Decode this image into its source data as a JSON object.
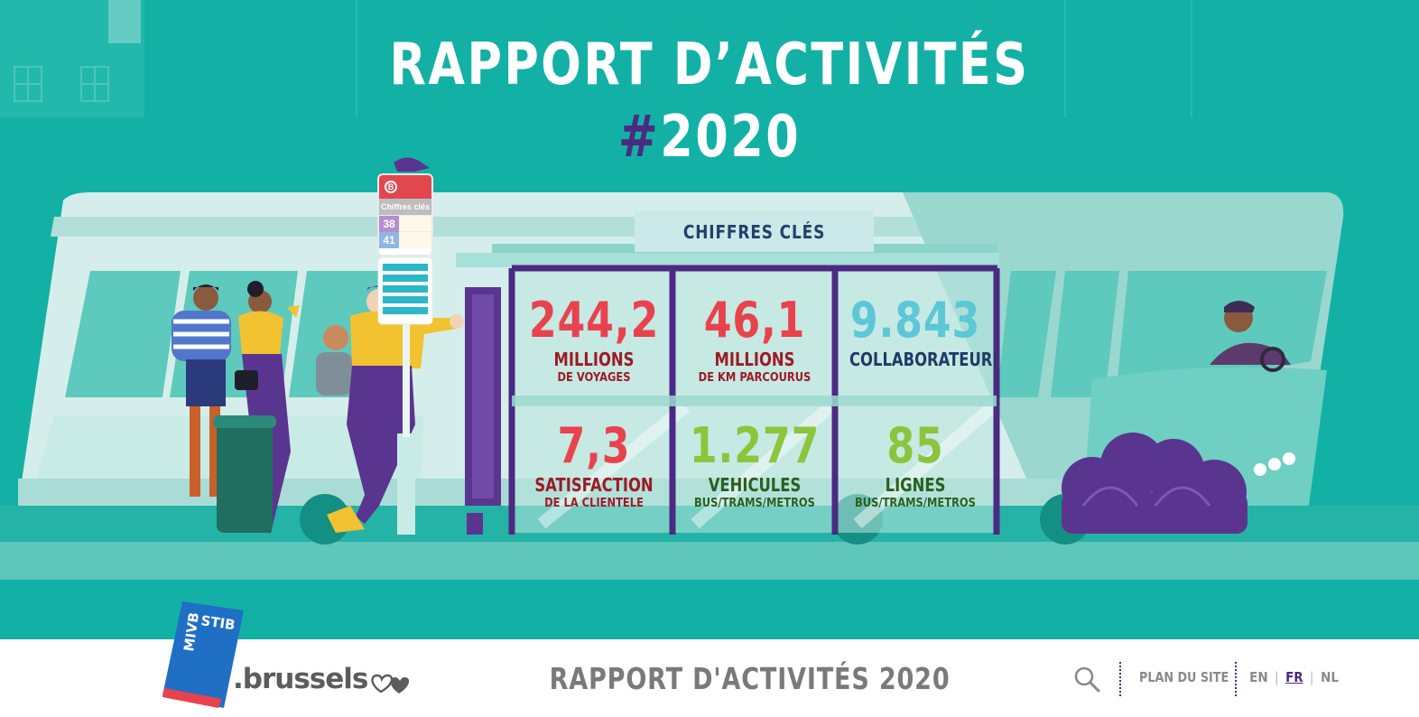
{
  "hero": {
    "title": "RAPPORT D’ACTIVITÉS",
    "year_hash": "#",
    "year": "2020"
  },
  "stop_sign": {
    "badge": "B",
    "label": "Chiffres clés",
    "lines": [
      {
        "number": "38",
        "color": "#b48fd0"
      },
      {
        "number": "41",
        "color": "#8fb7e3"
      }
    ]
  },
  "panel": {
    "heading": "CHIFFRES CLÉS"
  },
  "stats": [
    {
      "value": "244,2",
      "label": "MILLIONS",
      "sub": "DE VOYAGES",
      "value_color": "#e8434d",
      "label_color": "#9d1a24"
    },
    {
      "value": "46,1",
      "label": "MILLIONS",
      "sub": "DE KM PARCOURUS",
      "value_color": "#e8434d",
      "label_color": "#9d1a24"
    },
    {
      "value": "9.843",
      "label": "COLLABORATEURS",
      "sub": "",
      "value_color": "#5cc7d6",
      "label_color": "#1f3a66"
    },
    {
      "value": "7,3",
      "label": "SATISFACTION",
      "sub": "DE LA CLIENTELE",
      "value_color": "#e8434d",
      "label_color": "#9d1a24"
    },
    {
      "value": "1.277",
      "label": "VEHICULES",
      "sub": "BUS/TRAMS/METROS",
      "value_color": "#8cc43c",
      "label_color": "#2c5e1e"
    },
    {
      "value": "85",
      "label": "LIGNES",
      "sub": "BUS/TRAMS/METROS",
      "value_color": "#8cc43c",
      "label_color": "#2c5e1e"
    }
  ],
  "logo": {
    "mivb": "MIVB",
    "stib": "STIB",
    "brussels": ".brussels"
  },
  "footer": {
    "title": "RAPPORT D'ACTIVITÉS 2020",
    "search_icon": "search-icon",
    "sitemap": "PLAN DU SITE",
    "languages": [
      {
        "code": "EN",
        "active": false
      },
      {
        "code": "FR",
        "active": true
      },
      {
        "code": "NL",
        "active": false
      }
    ]
  },
  "colors": {
    "hero_bg": "#13b1a5",
    "accent_purple": "#4b2a82",
    "stib_blue": "#1f6fc5",
    "stib_red": "#e8434d"
  }
}
